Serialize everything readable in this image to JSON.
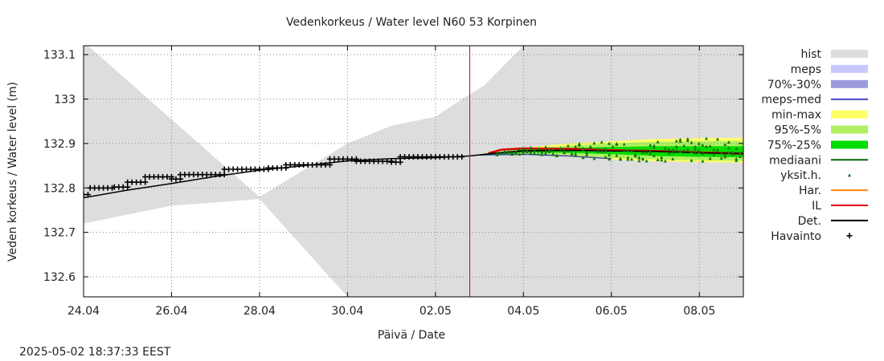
{
  "chart_data": {
    "type": "line",
    "title": "Vedenkorkeus / Water level   N60 53 Korpinen",
    "xlabel": "Päivä / Date",
    "ylabel": "Veden korkeus / Water level (m)",
    "timestamp": "2025-05-02 18:37:33 EEST",
    "xlim_days": [
      0,
      15
    ],
    "ylim": [
      132.555,
      133.12
    ],
    "x_ticks": [
      {
        "day": 0,
        "label": "24.04"
      },
      {
        "day": 2,
        "label": "26.04"
      },
      {
        "day": 4,
        "label": "28.04"
      },
      {
        "day": 6,
        "label": "30.04"
      },
      {
        "day": 8,
        "label": "02.05"
      },
      {
        "day": 10,
        "label": "04.05"
      },
      {
        "day": 12,
        "label": "06.05"
      },
      {
        "day": 14,
        "label": "08.05"
      }
    ],
    "y_ticks": [
      {
        "value": 132.6,
        "label": "132.6"
      },
      {
        "value": 132.7,
        "label": "132.7"
      },
      {
        "value": 132.8,
        "label": "132.8"
      },
      {
        "value": 132.9,
        "label": "132.9"
      },
      {
        "value": 133.0,
        "label": "133"
      },
      {
        "value": 133.1,
        "label": "133.1"
      }
    ],
    "grid": true,
    "forecast_start_day": 8.78,
    "colors": {
      "hist": "#dddddd",
      "meps": "#c8c8ff",
      "p70_30": "#9b9bdc",
      "meps_med": "#4040c0",
      "min_max": "#ffff66",
      "p95_5": "#b0f060",
      "p75_25": "#00dd00",
      "mediaani": "#006400",
      "yksit": "#117711",
      "har": "#ff8800",
      "il": "#dd0000",
      "det": "#000000",
      "havainto": "#000000",
      "forecast_line": "#dd0000"
    },
    "legend": [
      {
        "key": "hist",
        "label": "hist",
        "style": "band"
      },
      {
        "key": "meps",
        "label": "meps",
        "style": "band"
      },
      {
        "key": "p70_30",
        "label": "70%-30%",
        "style": "band"
      },
      {
        "key": "meps_med",
        "label": "meps-med",
        "style": "line"
      },
      {
        "key": "min_max",
        "label": "min-max",
        "style": "band"
      },
      {
        "key": "p95_5",
        "label": "95%-5%",
        "style": "band"
      },
      {
        "key": "p75_25",
        "label": "75%-25%",
        "style": "band"
      },
      {
        "key": "mediaani",
        "label": "mediaani",
        "style": "line"
      },
      {
        "key": "yksit",
        "label": "yksit.h.",
        "style": "tri"
      },
      {
        "key": "har",
        "label": "Har.",
        "style": "line"
      },
      {
        "key": "il",
        "label": "IL",
        "style": "line"
      },
      {
        "key": "det",
        "label": "Det.",
        "style": "line"
      },
      {
        "key": "havainto",
        "label": "Havainto",
        "style": "plus"
      }
    ],
    "series": {
      "hist_upper": [
        [
          0,
          133.12
        ],
        [
          0.1,
          133.12
        ],
        [
          4.0,
          132.78
        ],
        [
          6.0,
          132.9
        ],
        [
          7.0,
          132.94
        ],
        [
          8.0,
          132.96
        ],
        [
          8.6,
          133.0
        ],
        [
          9.1,
          133.03
        ],
        [
          10.0,
          133.12
        ],
        [
          15,
          133.12
        ]
      ],
      "hist_lower": [
        [
          0,
          132.72
        ],
        [
          2.0,
          132.76
        ],
        [
          4.0,
          132.775
        ],
        [
          6.0,
          132.555
        ],
        [
          15,
          132.555
        ]
      ],
      "det": [
        [
          0,
          132.778
        ],
        [
          1.0,
          132.795
        ],
        [
          2.0,
          132.81
        ],
        [
          3.0,
          132.826
        ],
        [
          4.0,
          132.84
        ],
        [
          5.0,
          132.85
        ],
        [
          6.0,
          132.861
        ],
        [
          7.0,
          132.866
        ],
        [
          8.0,
          132.868
        ],
        [
          8.78,
          132.872
        ],
        [
          9.5,
          132.88
        ],
        [
          10.0,
          132.884
        ],
        [
          11.0,
          132.885
        ],
        [
          12.0,
          132.883
        ],
        [
          13.0,
          132.882
        ],
        [
          14.0,
          132.879
        ],
        [
          15,
          132.877
        ]
      ],
      "il": [
        [
          9.2,
          132.878
        ],
        [
          9.5,
          132.886
        ],
        [
          10.0,
          132.889
        ],
        [
          11.0,
          132.888
        ],
        [
          12.0,
          132.885
        ],
        [
          13.0,
          132.883
        ],
        [
          14.0,
          132.88
        ],
        [
          15,
          132.877
        ]
      ],
      "meps_med": [
        [
          9.0,
          132.874
        ],
        [
          10.0,
          132.876
        ],
        [
          11.0,
          132.872
        ],
        [
          12.0,
          132.866
        ]
      ],
      "mediaani": [
        [
          9.0,
          132.874
        ],
        [
          10.0,
          132.882
        ],
        [
          11.0,
          132.884
        ],
        [
          12.0,
          132.884
        ],
        [
          13.0,
          132.882
        ],
        [
          14.0,
          132.88
        ],
        [
          15,
          132.879
        ]
      ],
      "min_max_upper": [
        [
          9.0,
          132.875
        ],
        [
          10.0,
          132.89
        ],
        [
          11.0,
          132.9
        ],
        [
          12.0,
          132.905
        ],
        [
          13.0,
          132.91
        ],
        [
          14.0,
          132.912
        ],
        [
          15,
          132.913
        ]
      ],
      "min_max_lower": [
        [
          9.0,
          132.873
        ],
        [
          10.0,
          132.876
        ],
        [
          11.0,
          132.87
        ],
        [
          12.0,
          132.864
        ],
        [
          13.0,
          132.86
        ],
        [
          14.0,
          132.858
        ],
        [
          15,
          132.857
        ]
      ],
      "p95_5_upper": [
        [
          9.0,
          132.875
        ],
        [
          10.0,
          132.888
        ],
        [
          11.0,
          132.895
        ],
        [
          12.0,
          132.9
        ],
        [
          13.0,
          132.904
        ],
        [
          14.0,
          132.905
        ],
        [
          15,
          132.906
        ]
      ],
      "p95_5_lower": [
        [
          9.0,
          132.873
        ],
        [
          10.0,
          132.878
        ],
        [
          11.0,
          132.874
        ],
        [
          12.0,
          132.868
        ],
        [
          13.0,
          132.864
        ],
        [
          14.0,
          132.862
        ],
        [
          15,
          132.861
        ]
      ],
      "p75_25_upper": [
        [
          9.0,
          132.874
        ],
        [
          10.0,
          132.886
        ],
        [
          11.0,
          132.89
        ],
        [
          12.0,
          132.892
        ],
        [
          13.0,
          132.894
        ],
        [
          14.0,
          132.894
        ],
        [
          15,
          132.894
        ]
      ],
      "p75_25_lower": [
        [
          9.0,
          132.873
        ],
        [
          10.0,
          132.88
        ],
        [
          11.0,
          132.879
        ],
        [
          12.0,
          132.876
        ],
        [
          13.0,
          132.872
        ],
        [
          14.0,
          132.87
        ],
        [
          15,
          132.869
        ]
      ],
      "havainto_segments": [
        {
          "x0": 0.0,
          "x1": 0.1,
          "y": 132.785
        },
        {
          "x0": 0.15,
          "x1": 0.7,
          "y": 132.8
        },
        {
          "x0": 0.7,
          "x1": 1.0,
          "y": 132.802
        },
        {
          "x0": 1.0,
          "x1": 1.4,
          "y": 132.813
        },
        {
          "x0": 1.4,
          "x1": 2.0,
          "y": 132.825
        },
        {
          "x0": 2.0,
          "x1": 2.2,
          "y": 132.82
        },
        {
          "x0": 2.2,
          "x1": 3.2,
          "y": 132.83
        },
        {
          "x0": 3.2,
          "x1": 4.2,
          "y": 132.842
        },
        {
          "x0": 4.2,
          "x1": 4.6,
          "y": 132.845
        },
        {
          "x0": 4.6,
          "x1": 5.6,
          "y": 132.852
        },
        {
          "x0": 5.6,
          "x1": 6.2,
          "y": 132.865
        },
        {
          "x0": 6.2,
          "x1": 7.0,
          "y": 132.86
        },
        {
          "x0": 7.0,
          "x1": 7.2,
          "y": 132.858
        },
        {
          "x0": 7.2,
          "x1": 8.6,
          "y": 132.87
        }
      ]
    }
  }
}
